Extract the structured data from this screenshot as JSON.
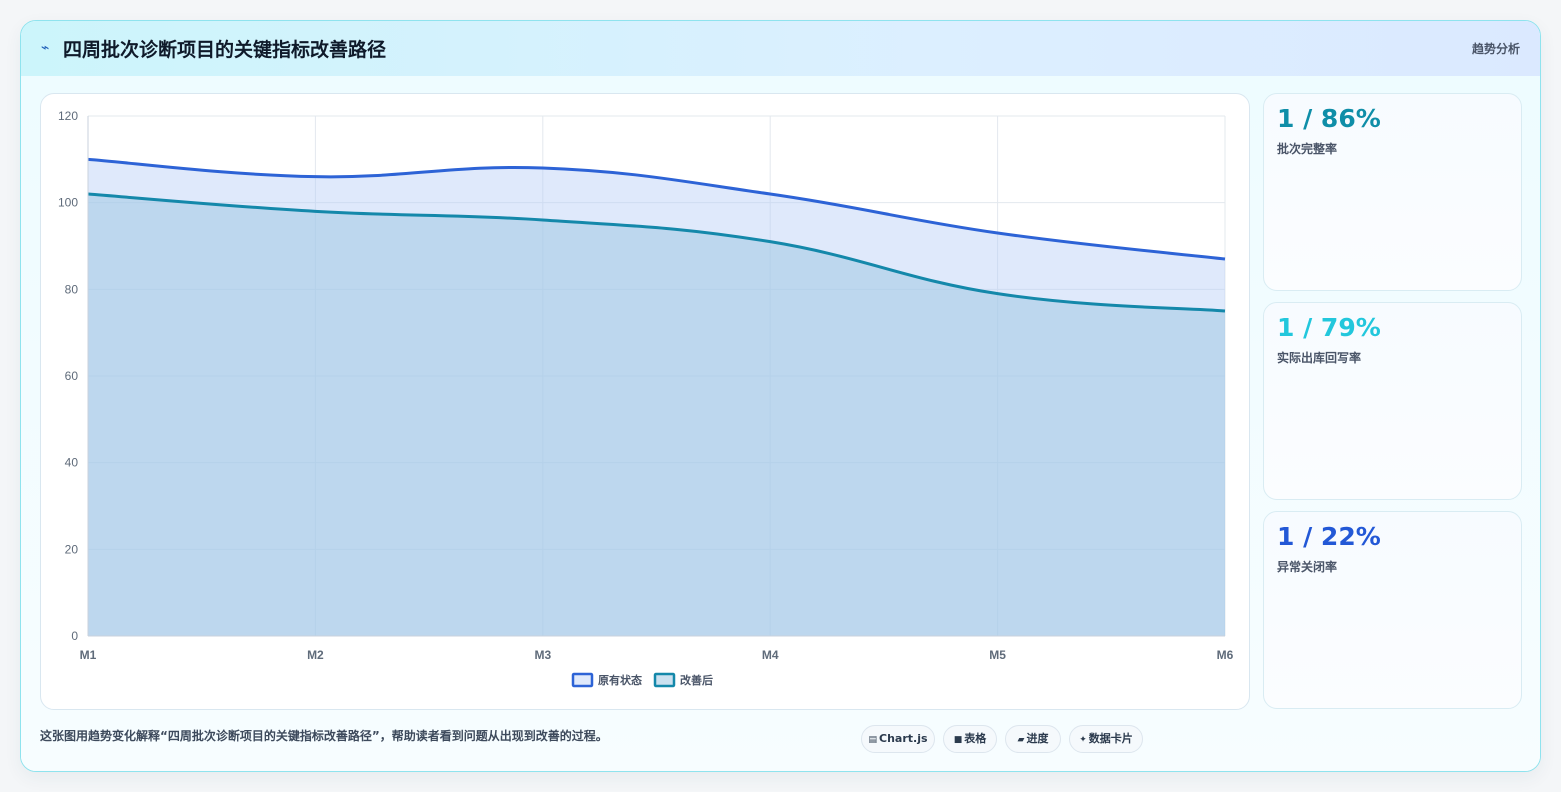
{
  "header": {
    "icon": "chart-icon",
    "title": "四周批次诊断项目的关键指标改善路径",
    "tag": "趋势分析"
  },
  "kpis": [
    {
      "value": "1 / 86%",
      "label": "批次完整率",
      "color": "#0f8ea8"
    },
    {
      "value": "1 / 79%",
      "label": "实际出库回写率",
      "color": "#22c7dc"
    },
    {
      "value": "1 / 22%",
      "label": "异常关闭率",
      "color": "#2358d6"
    }
  ],
  "footer": {
    "caption": "这张图用趋势变化解释“四周批次诊断项目的关键指标改善路径”，帮助读者看到问题从出现到改善的过程。",
    "chips": [
      {
        "icon": "▤",
        "label": "Chart.js"
      },
      {
        "icon": "■",
        "label": "表格"
      },
      {
        "icon": "▰",
        "label": "进度"
      },
      {
        "icon": "✦",
        "label": "数据卡片"
      }
    ]
  },
  "chart_data": {
    "type": "area",
    "categories": [
      "M1",
      "M2",
      "M3",
      "M4",
      "M5",
      "M6"
    ],
    "ylim": [
      0,
      120
    ],
    "yticks": [
      0,
      20,
      40,
      60,
      80,
      100,
      120
    ],
    "grid": true,
    "legend_position": "bottom",
    "series": [
      {
        "name": "原有状态",
        "values": [
          110,
          106,
          108,
          102,
          93,
          87
        ],
        "color": "#2d63d6",
        "fill": "rgba(178,202,245,0.42)"
      },
      {
        "name": "改善后",
        "values": [
          102,
          98,
          96,
          91,
          79,
          75
        ],
        "color": "#1488aa",
        "fill": "rgba(160,200,228,0.55)"
      }
    ]
  }
}
